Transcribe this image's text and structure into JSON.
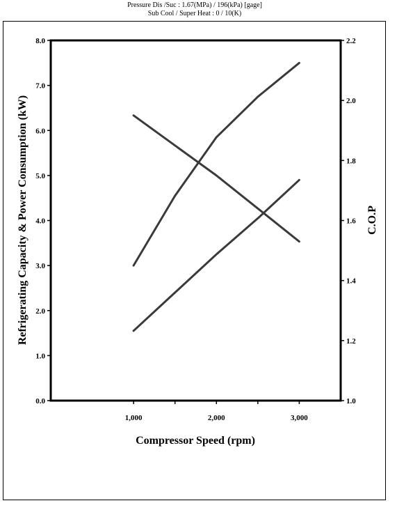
{
  "subtitles": [
    "Pressure Dis /Suc : 1.67(MPa) / 196(kPa) [gage]",
    "Sub Cool / Super Heat : 0 / 10(K)"
  ],
  "chart_data": {
    "type": "line",
    "title": "",
    "xlabel": "Compressor Speed (rpm)",
    "ylabel": "Refrigerating Capacity & Power Consumption (kW)",
    "y2label": "C.O.P",
    "xlim": [
      0,
      3500
    ],
    "ylim": [
      0,
      8
    ],
    "y2lim": [
      1.0,
      2.2
    ],
    "x_ticks": [
      1000,
      2000,
      3000
    ],
    "x_tick_labels": [
      "1,000",
      "2,000",
      "3,000"
    ],
    "x_minor_ticks": [
      1500,
      2500
    ],
    "y_ticks": [
      "0.0",
      "1.0",
      "2.0",
      "3.0",
      "4.0",
      "5.0",
      "6.0",
      "7.0",
      "8.0"
    ],
    "y2_ticks": [
      "1.0",
      "1.2",
      "1.4",
      "1.6",
      "1.8",
      "2.0",
      "2.2"
    ],
    "grid": false,
    "legend": "none",
    "line_color": "#3a3a3a",
    "series": [
      {
        "axis": "left",
        "x": [
          1000,
          1500,
          2000,
          2500,
          3000
        ],
        "values": [
          3.0,
          4.55,
          5.85,
          6.75,
          7.5
        ]
      },
      {
        "axis": "left",
        "x": [
          1000,
          1500,
          2000,
          2500,
          3000
        ],
        "values": [
          1.55,
          2.4,
          3.25,
          4.05,
          4.9
        ]
      },
      {
        "axis": "right",
        "x": [
          1000,
          1500,
          2000,
          2500,
          3000
        ],
        "values": [
          1.95,
          1.85,
          1.75,
          1.64,
          1.53
        ]
      }
    ]
  }
}
